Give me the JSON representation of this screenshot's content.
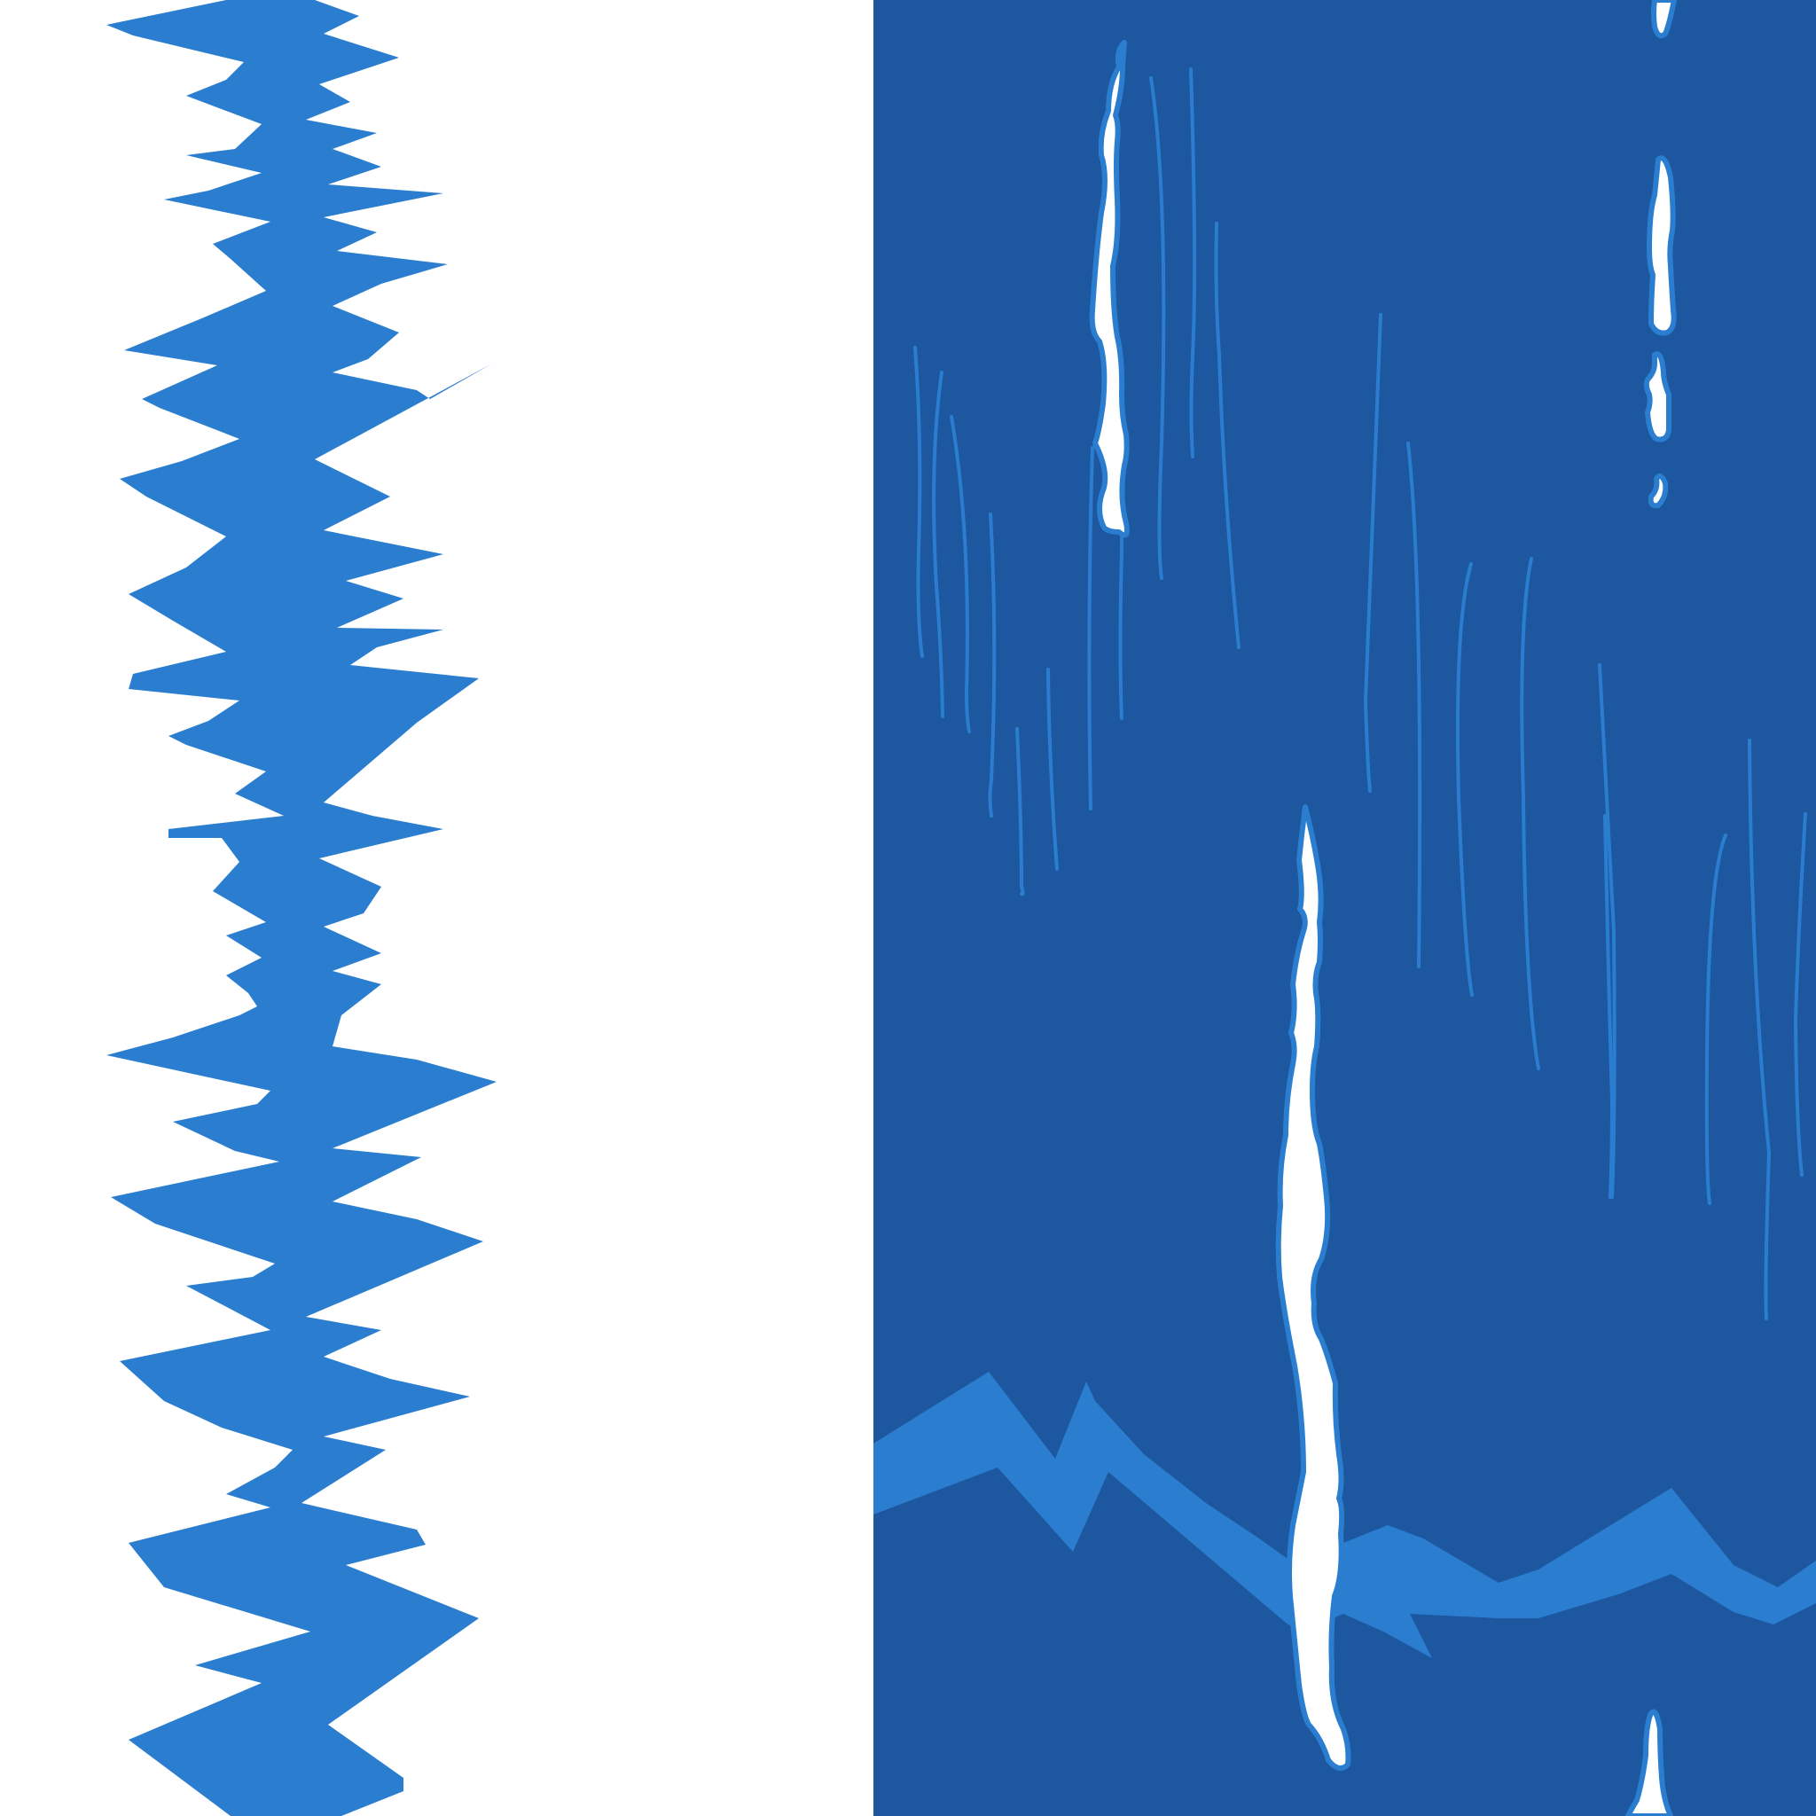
{
  "artwork": {
    "kind": "abstract-blue-pattern",
    "colors": {
      "background": "#ffffff",
      "light_blue": "#2b7ecf",
      "dark_blue": "#1d579f",
      "highlight": "#ffffff"
    }
  }
}
